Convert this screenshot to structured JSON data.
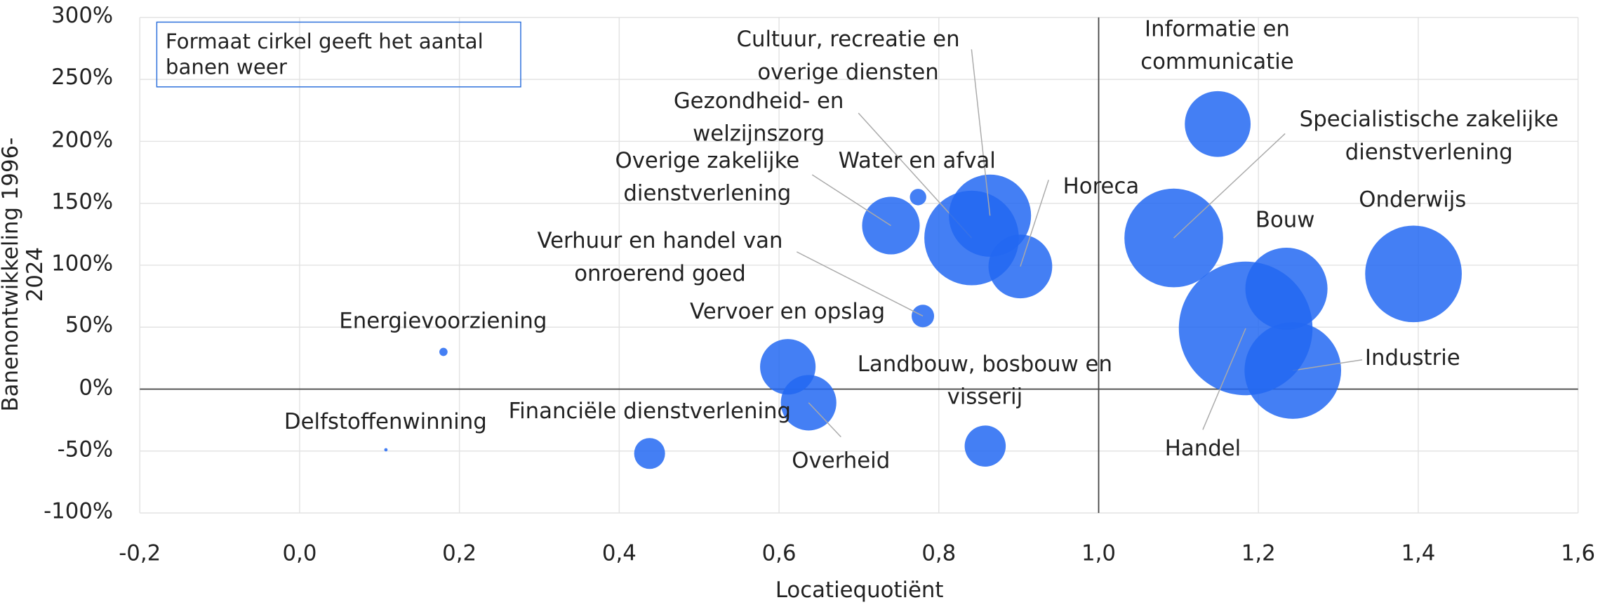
{
  "chart_data": {
    "type": "bubble",
    "annotation": "Formaat cirkel geeft het aantal banen weer",
    "xlabel": "Locatiequotiënt",
    "ylabel": "Banenontwikkeling 1996-2024",
    "xlim": [
      -0.2,
      1.6
    ],
    "xticks": [
      {
        "value": -0.2,
        "label": "-0,2"
      },
      {
        "value": 0,
        "label": "0,0"
      },
      {
        "value": 0.2,
        "label": "0,2"
      },
      {
        "value": 0.4,
        "label": "0,4"
      },
      {
        "value": 0.6,
        "label": "0,6"
      },
      {
        "value": 0.8,
        "label": "0,8"
      },
      {
        "value": 1,
        "label": "1,0"
      },
      {
        "value": 1.2,
        "label": "1,2"
      },
      {
        "value": 1.4,
        "label": "1,4"
      },
      {
        "value": 1.6,
        "label": "1,6"
      }
    ],
    "ylim": [
      -100,
      300
    ],
    "yticks": [
      {
        "value": -100,
        "label": "-100%"
      },
      {
        "value": -50,
        "label": "-50%"
      },
      {
        "value": 0,
        "label": "0%"
      },
      {
        "value": 50,
        "label": "50%"
      },
      {
        "value": 100,
        "label": "100%"
      },
      {
        "value": 150,
        "label": "150%"
      },
      {
        "value": 200,
        "label": "200%"
      },
      {
        "value": 250,
        "label": "250%"
      },
      {
        "value": 300,
        "label": "300%"
      }
    ],
    "grid": true,
    "yaxis_crosses": 1,
    "color": "#2368f2",
    "names": [
      "Energievoorziening",
      "Delfstoffenwinning",
      "Financiële dienstverlening",
      "Vervoer en opslag",
      "Overheid",
      "Landbouw, bosbouw en visserij",
      "Verhuur en handel van onroerend goed",
      "Water en afval",
      "Overige zakelijke dienstverlening",
      "Gezondheid- en welzijnszorg",
      "Cultuur, recreatie en overige diensten",
      "Horeca",
      "Informatie en communicatie",
      "Specialistische zakelijke dienstverlening",
      "Bouw",
      "Onderwijs",
      "Industrie",
      "Handel"
    ],
    "x": [
      0.18,
      0.108,
      0.438,
      0.611,
      0.637,
      0.858,
      0.78,
      0.774,
      0.74,
      0.841,
      0.864,
      0.902,
      1.149,
      1.094,
      1.235,
      1.394,
      1.243,
      1.184
    ],
    "values": [
      30,
      -49,
      -52,
      18,
      -11,
      -46,
      59,
      155,
      132,
      122,
      140,
      99,
      214,
      122,
      81,
      93,
      15,
      49
    ],
    "sizes": [
      6,
      1,
      85,
      274,
      274,
      150,
      45,
      24,
      295,
      795,
      600,
      361,
      385,
      866,
      600,
      830,
      830,
      1588
    ]
  }
}
